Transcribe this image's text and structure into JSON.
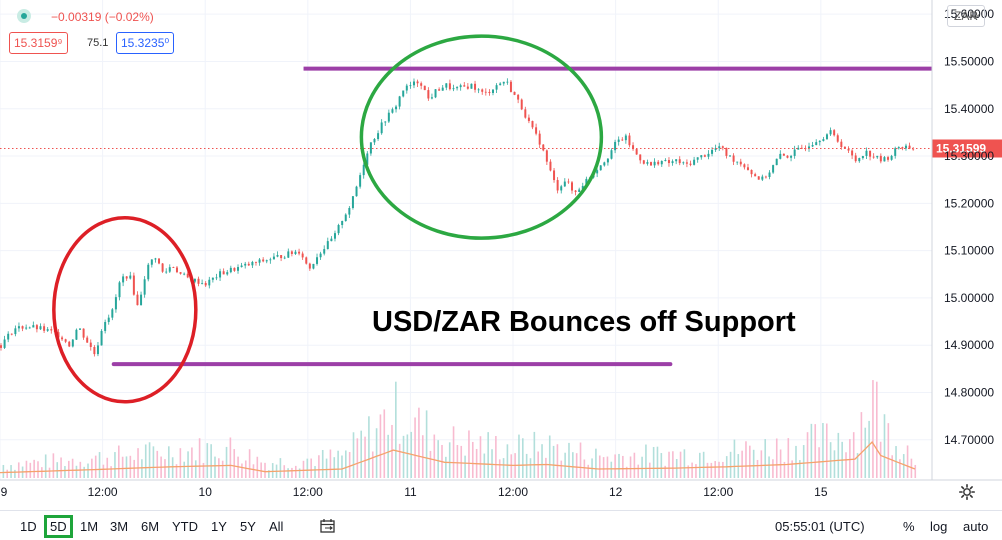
{
  "header": {
    "change": "−0.00319 (−0.02%)",
    "bid": "15.3159⁹",
    "spread": "75.1",
    "ask": "15.3235⁰",
    "currency": "ZAR"
  },
  "colors": {
    "up": "#26a69a",
    "down": "#ef5350",
    "price_line": "#ef5350",
    "support_line": "#9c3fa7",
    "red_ellipse": "#dd1f26",
    "green_ellipse": "#2ca842",
    "volume_ma": "#f5a26c"
  },
  "icons": [
    "status-dot-icon",
    "chevron-down-icon",
    "gear-icon",
    "calendar-range-icon"
  ],
  "bottom_bar": {
    "timeframes": [
      "1D",
      "5D",
      "1M",
      "3M",
      "6M",
      "YTD",
      "1Y",
      "5Y",
      "All"
    ],
    "active": "5D",
    "time": "05:55:01 (UTC)",
    "percent": "%",
    "log": "log",
    "auto": "auto"
  },
  "chart_data": {
    "type": "candlestick",
    "title": "",
    "annotation": "USD/ZAR Bounces off Support",
    "y_axis": {
      "ticks": [
        "15.60000",
        "15.50000",
        "15.40000",
        "15.30000",
        "15.20000",
        "15.10000",
        "15.00000",
        "14.90000",
        "14.80000",
        "14.70000"
      ],
      "range": [
        14.615,
        15.63
      ]
    },
    "x_axis": {
      "ticks": [
        "9",
        "12:00",
        "10",
        "12:00",
        "11",
        "12:00",
        "12",
        "12:00",
        "15"
      ],
      "range_hours": [
        0,
        109
      ]
    },
    "last_price": 15.31599,
    "last_price_label": "15.31599",
    "support_level": 14.86,
    "resistance_level": 15.485,
    "price_path": [
      [
        0,
        14.9
      ],
      [
        1.5,
        14.935
      ],
      [
        3,
        14.94
      ],
      [
        4.5,
        14.935
      ],
      [
        5.5,
        14.93
      ],
      [
        7,
        14.92
      ],
      [
        8,
        14.9
      ],
      [
        9,
        14.94
      ],
      [
        10,
        14.91
      ],
      [
        11,
        14.88
      ],
      [
        12,
        14.95
      ],
      [
        13,
        14.97
      ],
      [
        14,
        15.04
      ],
      [
        15,
        15.05
      ],
      [
        16,
        14.98
      ],
      [
        17,
        15.06
      ],
      [
        18,
        15.09
      ],
      [
        19,
        15.05
      ],
      [
        20,
        15.07
      ],
      [
        21,
        15.05
      ],
      [
        22,
        15.04
      ],
      [
        24,
        15.03
      ],
      [
        25.5,
        15.05
      ],
      [
        27,
        15.06
      ],
      [
        29,
        15.07
      ],
      [
        31,
        15.08
      ],
      [
        33,
        15.09
      ],
      [
        35,
        15.1
      ],
      [
        36,
        15.06
      ],
      [
        37,
        15.09
      ],
      [
        38,
        15.11
      ],
      [
        39,
        15.13
      ],
      [
        40,
        15.17
      ],
      [
        41,
        15.2
      ],
      [
        42,
        15.26
      ],
      [
        43,
        15.32
      ],
      [
        44,
        15.35
      ],
      [
        45,
        15.38
      ],
      [
        46,
        15.4
      ],
      [
        47,
        15.44
      ],
      [
        48,
        15.45
      ],
      [
        49,
        15.46
      ],
      [
        50,
        15.42
      ],
      [
        51,
        15.44
      ],
      [
        52,
        15.45
      ],
      [
        53,
        15.44
      ],
      [
        55,
        15.45
      ],
      [
        56.5,
        15.43
      ],
      [
        58,
        15.45
      ],
      [
        59,
        15.46
      ],
      [
        60,
        15.43
      ],
      [
        61,
        15.4
      ],
      [
        62,
        15.36
      ],
      [
        63,
        15.33
      ],
      [
        64,
        15.28
      ],
      [
        65,
        15.23
      ],
      [
        66,
        15.25
      ],
      [
        67,
        15.22
      ],
      [
        68,
        15.24
      ],
      [
        69,
        15.26
      ],
      [
        70,
        15.28
      ],
      [
        71,
        15.3
      ],
      [
        72,
        15.33
      ],
      [
        73,
        15.34
      ],
      [
        74,
        15.31
      ],
      [
        75,
        15.29
      ],
      [
        76,
        15.28
      ],
      [
        77,
        15.29
      ],
      [
        78,
        15.285
      ],
      [
        79,
        15.29
      ],
      [
        80,
        15.28
      ],
      [
        81,
        15.29
      ],
      [
        82,
        15.3
      ],
      [
        83,
        15.31
      ],
      [
        84,
        15.32
      ],
      [
        85,
        15.3
      ],
      [
        86,
        15.29
      ],
      [
        87,
        15.28
      ],
      [
        88,
        15.26
      ],
      [
        89,
        15.25
      ],
      [
        90,
        15.27
      ],
      [
        91,
        15.3
      ],
      [
        92,
        15.3
      ],
      [
        93,
        15.31
      ],
      [
        94,
        15.32
      ],
      [
        95,
        15.33
      ],
      [
        96,
        15.34
      ],
      [
        97,
        15.35
      ],
      [
        98,
        15.33
      ],
      [
        99,
        15.31
      ],
      [
        100,
        15.29
      ],
      [
        101,
        15.31
      ],
      [
        102,
        15.3
      ],
      [
        103,
        15.29
      ],
      [
        104,
        15.3
      ],
      [
        105,
        15.32
      ],
      [
        106,
        15.32
      ],
      [
        107,
        15.315
      ]
    ],
    "volume_relative": [
      [
        0,
        0.12
      ],
      [
        10,
        0.18
      ],
      [
        20,
        0.25
      ],
      [
        27,
        0.28
      ],
      [
        31,
        0.14
      ],
      [
        40,
        0.2
      ],
      [
        46,
        0.62
      ],
      [
        52,
        0.35
      ],
      [
        60,
        0.28
      ],
      [
        64,
        0.3
      ],
      [
        70,
        0.2
      ],
      [
        79,
        0.22
      ],
      [
        85,
        0.25
      ],
      [
        92,
        0.3
      ],
      [
        100,
        0.42
      ],
      [
        102,
        0.8
      ],
      [
        103,
        0.5
      ],
      [
        107,
        0.2
      ]
    ],
    "grid": true,
    "legend": "none"
  }
}
